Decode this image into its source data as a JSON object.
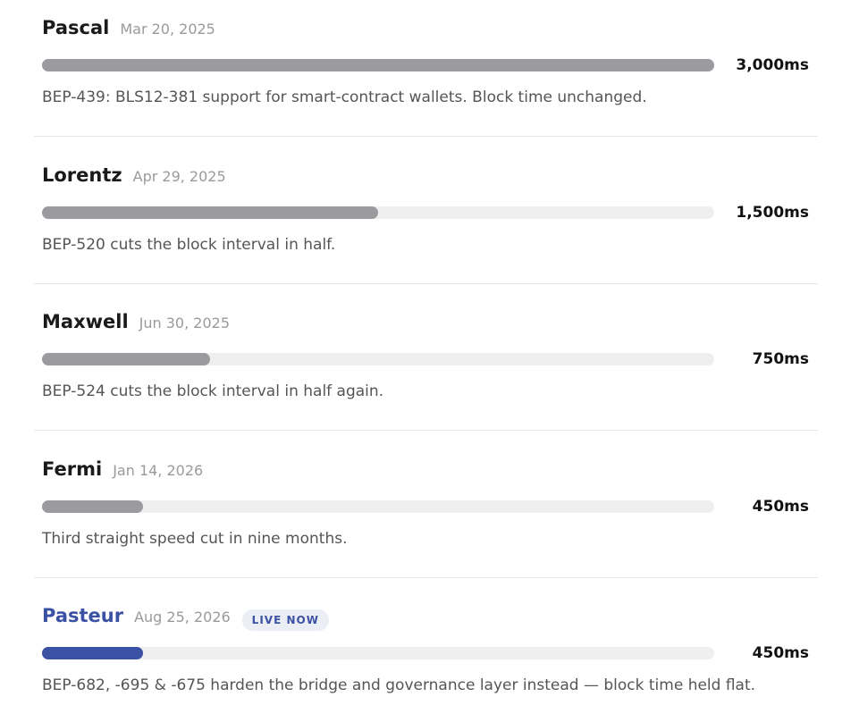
{
  "scale": [
    0,
    3000
  ],
  "bar_color": "#9b9b9f",
  "track_color": "#efeff0",
  "highlight_color": "#3b51a3",
  "items": [
    {
      "name": "Pascal",
      "date": "Mar 20, 2025",
      "value": 3000,
      "value_label": "3,000ms",
      "description": "BEP-439: BLS12-381 support for smart-contract wallets. Block time unchanged."
    },
    {
      "name": "Lorentz",
      "date": "Apr 29, 2025",
      "value": 1500,
      "value_label": "1,500ms",
      "description": "BEP-520 cuts the block interval in half."
    },
    {
      "name": "Maxwell",
      "date": "Jun 30, 2025",
      "value": 750,
      "value_label": "750ms",
      "description": "BEP-524 cuts the block interval in half again."
    },
    {
      "name": "Fermi",
      "date": "Jan 14, 2026",
      "value": 450,
      "value_label": "450ms",
      "description": "Third straight speed cut in nine months."
    },
    {
      "name": "Pasteur",
      "date": "Aug 25, 2026",
      "badge": "LIVE NOW",
      "highlight": true,
      "value": 450,
      "value_label": "450ms",
      "description": "BEP-682, -695 & -675 harden the bridge and governance layer instead — block time held flat."
    }
  ]
}
